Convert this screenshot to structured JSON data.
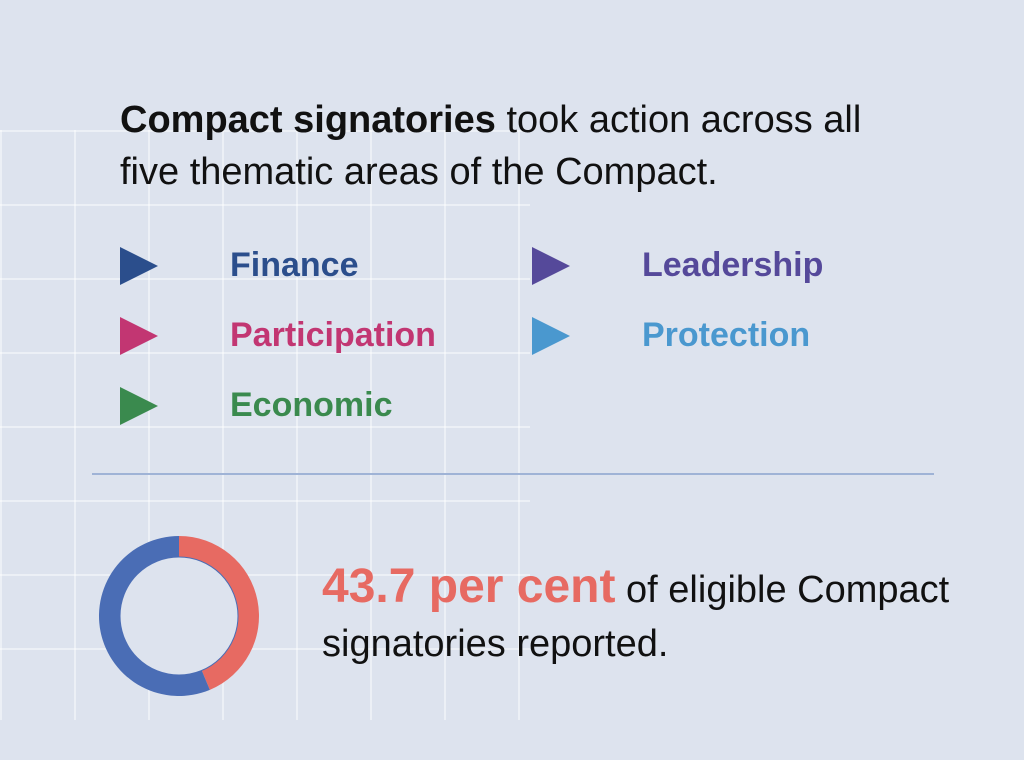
{
  "headline": {
    "bold": "Compact signatories",
    "rest": "took action across all five thematic areas of the Compact."
  },
  "themes": [
    {
      "label": "Finance",
      "color": "#2b4e8c"
    },
    {
      "label": "Leadership",
      "color": "#55499a"
    },
    {
      "label": "Participation",
      "color": "#c23672"
    },
    {
      "label": "Protection",
      "color": "#4a98cf"
    },
    {
      "label": "Economic",
      "color": "#3a8a4e"
    }
  ],
  "stat": {
    "value": "43.7 per cent",
    "text": "of eligible Compact signatories reported."
  },
  "chart_data": {
    "type": "pie",
    "variant": "donut",
    "slices": [
      {
        "value": 43.7,
        "color": "#e76a62"
      },
      {
        "value": 56.3,
        "color": "#4a6db5"
      }
    ]
  }
}
